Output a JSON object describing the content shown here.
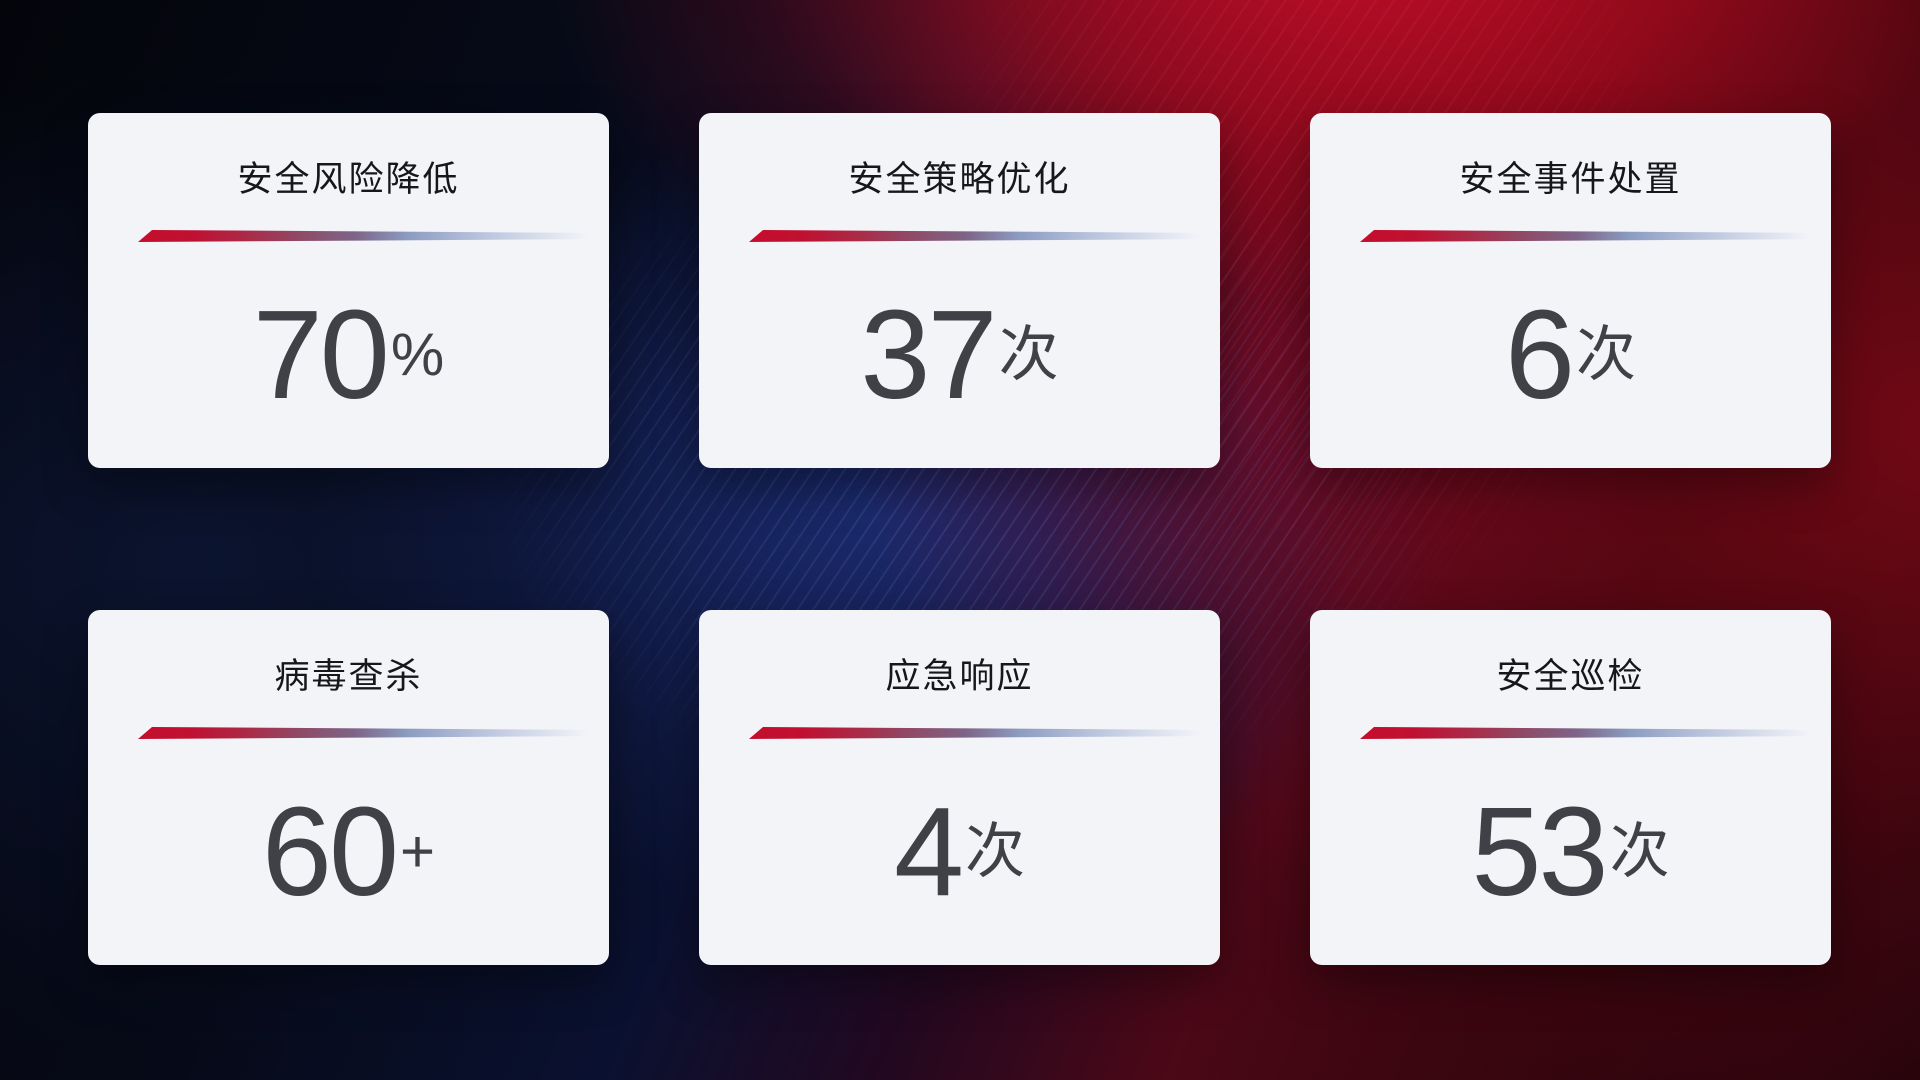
{
  "cards": [
    {
      "title": "安全风险降低",
      "value": "70",
      "unit": "%"
    },
    {
      "title": "安全策略优化",
      "value": "37",
      "unit": "次"
    },
    {
      "title": "安全事件处置",
      "value": "6",
      "unit": "次"
    },
    {
      "title": "病毒查杀",
      "value": "60",
      "unit": "+"
    },
    {
      "title": "应急响应",
      "value": "4",
      "unit": "次"
    },
    {
      "title": "安全巡检",
      "value": "53",
      "unit": "次"
    }
  ],
  "colors": {
    "accent_red": "#c40e2d",
    "divider_blue": "#aebad6",
    "card_background": "#f3f4f8",
    "title_text": "#16171b",
    "value_text": "#3f4146"
  }
}
